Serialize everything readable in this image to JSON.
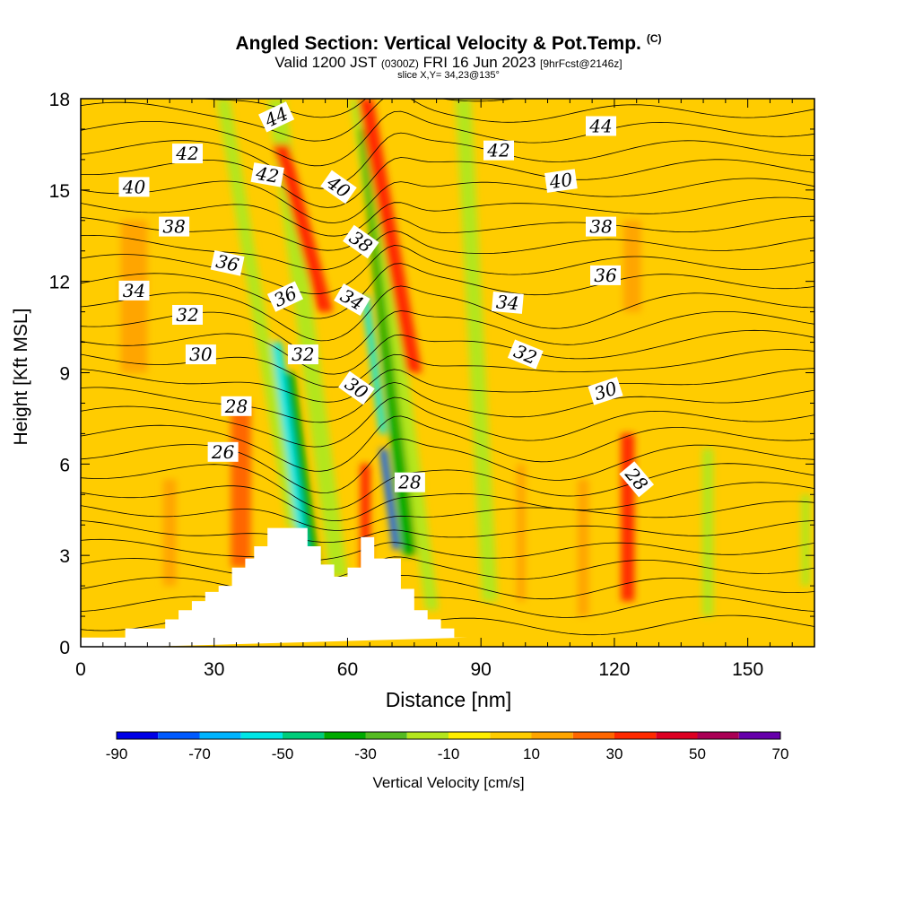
{
  "chart_data": {
    "type": "heatmap",
    "title": "Angled Section: Vertical Velocity & Pot.Temp.",
    "title_mark": "(C)",
    "subtitle_parts": [
      "Valid 1200 JST",
      "(0300Z)",
      "FRI 16 Jun 2023",
      "[9hrFcst@2146z]"
    ],
    "slice_label": "slice X,Y= 34,23@135°",
    "xlabel": "Distance [nm]",
    "ylabel": "Height [Kft MSL]",
    "xlim": [
      0,
      165
    ],
    "ylim": [
      0,
      18
    ],
    "x_ticks": [
      0,
      30,
      60,
      90,
      120,
      150
    ],
    "y_ticks": [
      0,
      3,
      6,
      9,
      12,
      15,
      18
    ],
    "colorbar": {
      "label": "Vertical Velocity [cm/s]",
      "tick_labels": [
        -90,
        -70,
        -50,
        -30,
        -10,
        10,
        30,
        50,
        70
      ],
      "bins": [
        {
          "from": -90,
          "to": -80,
          "color": "#0000e6"
        },
        {
          "from": -80,
          "to": -70,
          "color": "#005aff"
        },
        {
          "from": -70,
          "to": -60,
          "color": "#00b4ff"
        },
        {
          "from": -60,
          "to": -50,
          "color": "#00e6e6"
        },
        {
          "from": -50,
          "to": -40,
          "color": "#00cc7a"
        },
        {
          "from": -40,
          "to": -30,
          "color": "#00aa00"
        },
        {
          "from": -30,
          "to": -20,
          "color": "#55bb22"
        },
        {
          "from": -20,
          "to": -10,
          "color": "#b4e61e"
        },
        {
          "from": -10,
          "to": 0,
          "color": "#ffee00"
        },
        {
          "from": 0,
          "to": 10,
          "color": "#ffcc00"
        },
        {
          "from": 10,
          "to": 20,
          "color": "#ffa500"
        },
        {
          "from": 20,
          "to": 30,
          "color": "#ff6600"
        },
        {
          "from": 30,
          "to": 40,
          "color": "#ff2a00"
        },
        {
          "from": 40,
          "to": 50,
          "color": "#dd0022"
        },
        {
          "from": 50,
          "to": 60,
          "color": "#aa0055"
        },
        {
          "from": 60,
          "to": 70,
          "color": "#6600aa"
        }
      ]
    },
    "terrain": {
      "x": [
        0,
        10,
        10,
        19,
        19,
        22,
        22,
        25,
        25,
        28,
        28,
        31,
        31,
        34,
        34,
        37,
        37,
        39,
        39,
        42,
        42,
        51,
        51,
        54,
        54,
        57,
        57,
        60,
        60,
        63,
        63,
        66,
        66,
        72,
        72,
        75,
        75,
        78,
        78,
        81,
        81,
        84,
        84,
        87,
        87,
        165
      ],
      "y": [
        0.3,
        0.3,
        0.6,
        0.6,
        0.9,
        0.9,
        1.2,
        1.2,
        1.5,
        1.5,
        1.8,
        1.8,
        2.0,
        2.0,
        2.6,
        2.6,
        2.9,
        2.9,
        3.3,
        3.3,
        3.9,
        3.9,
        3.3,
        3.3,
        2.7,
        2.7,
        2.3,
        2.3,
        2.6,
        2.6,
        3.6,
        3.6,
        2.9,
        2.9,
        1.9,
        1.9,
        1.2,
        1.2,
        0.9,
        0.9,
        0.6,
        0.6,
        0.3,
        0.3,
        0.3
      ]
    },
    "vertical_velocity_features": [
      {
        "x_bottom": 48,
        "x_top": 32,
        "y_from": 3.9,
        "y_to": 18,
        "width": 3,
        "value": -15
      },
      {
        "x_bottom": 51,
        "x_top": 44,
        "y_from": 2.4,
        "y_to": 10,
        "width": 2.2,
        "value": -55
      },
      {
        "x_bottom": 53,
        "x_top": 47,
        "y_from": 2.2,
        "y_to": 9,
        "width": 2.2,
        "value": -35
      },
      {
        "x_bottom": 58,
        "x_top": 44,
        "y_from": 2.3,
        "y_to": 18,
        "width": 4,
        "value": -20
      },
      {
        "x_bottom": 55,
        "x_top": 45,
        "y_from": 11,
        "y_to": 16.5,
        "width": 3.5,
        "value": 35
      },
      {
        "x_bottom": 64,
        "x_top": 64,
        "y_from": 2.5,
        "y_to": 6,
        "width": 2.2,
        "value": 35
      },
      {
        "x_bottom": 72,
        "x_top": 62,
        "y_from": 8,
        "y_to": 18,
        "width": 3,
        "value": -20
      },
      {
        "x_bottom": 74,
        "x_top": 64,
        "y_from": 3,
        "y_to": 17,
        "width": 3,
        "value": -40
      },
      {
        "x_bottom": 71,
        "x_top": 68,
        "y_from": 3.2,
        "y_to": 6.5,
        "width": 1.5,
        "value": -80
      },
      {
        "x_bottom": 68,
        "x_top": 64,
        "y_from": 7,
        "y_to": 11.5,
        "width": 1.5,
        "value": -55
      },
      {
        "x_bottom": 79,
        "x_top": 64,
        "y_from": 1.2,
        "y_to": 18,
        "width": 3,
        "value": -20
      },
      {
        "x_bottom": 75,
        "x_top": 64,
        "y_from": 9,
        "y_to": 18,
        "width": 3.5,
        "value": 35
      },
      {
        "x_bottom": 92,
        "x_top": 86,
        "y_from": 1.5,
        "y_to": 18,
        "width": 3.5,
        "value": -12
      },
      {
        "x_bottom": 123,
        "x_top": 123,
        "y_from": 1.5,
        "y_to": 7,
        "width": 3,
        "value": 35
      },
      {
        "x_bottom": 36,
        "x_top": 36,
        "y_from": 2.6,
        "y_to": 8,
        "width": 4.5,
        "value": 25
      },
      {
        "x_bottom": 20,
        "x_top": 20,
        "y_from": 2,
        "y_to": 5.5,
        "width": 3,
        "value": 15
      },
      {
        "x_bottom": 12,
        "x_top": 12,
        "y_from": 9,
        "y_to": 14,
        "width": 6,
        "value": 12
      },
      {
        "x_bottom": 124,
        "x_top": 124,
        "y_from": 11,
        "y_to": 14,
        "width": 4,
        "value": 12
      },
      {
        "x_bottom": 141,
        "x_top": 141,
        "y_from": 1,
        "y_to": 6.5,
        "width": 2.5,
        "value": -12
      },
      {
        "x_bottom": 163,
        "x_top": 163,
        "y_from": 2,
        "y_to": 5,
        "width": 2,
        "value": -15
      },
      {
        "x_bottom": 99,
        "x_top": 99,
        "y_from": 1.5,
        "y_to": 6,
        "width": 2,
        "value": 12
      },
      {
        "x_bottom": 113,
        "x_top": 113,
        "y_from": 1,
        "y_to": 5.5,
        "width": 2.5,
        "value": 12
      }
    ],
    "isentrope_labels": [
      {
        "value": 44,
        "x": 44,
        "y": 17.4,
        "angle": -25
      },
      {
        "value": 44,
        "x": 117,
        "y": 17.1,
        "angle": 0
      },
      {
        "value": 42,
        "x": 24,
        "y": 16.2,
        "angle": 0
      },
      {
        "value": 42,
        "x": 42,
        "y": 15.5,
        "angle": 10
      },
      {
        "value": 42,
        "x": 94,
        "y": 16.3,
        "angle": 0
      },
      {
        "value": 40,
        "x": 12,
        "y": 15.1,
        "angle": 0
      },
      {
        "value": 40,
        "x": 58,
        "y": 15.1,
        "angle": 35
      },
      {
        "value": 40,
        "x": 108,
        "y": 15.3,
        "angle": -8
      },
      {
        "value": 38,
        "x": 21,
        "y": 13.8,
        "angle": 0
      },
      {
        "value": 38,
        "x": 63,
        "y": 13.3,
        "angle": 35
      },
      {
        "value": 38,
        "x": 117,
        "y": 13.8,
        "angle": 0
      },
      {
        "value": 36,
        "x": 33,
        "y": 12.6,
        "angle": 12
      },
      {
        "value": 36,
        "x": 46,
        "y": 11.5,
        "angle": -25
      },
      {
        "value": 36,
        "x": 118,
        "y": 12.2,
        "angle": 0
      },
      {
        "value": 34,
        "x": 12,
        "y": 11.7,
        "angle": 0
      },
      {
        "value": 34,
        "x": 61,
        "y": 11.4,
        "angle": 30
      },
      {
        "value": 34,
        "x": 96,
        "y": 11.3,
        "angle": 5
      },
      {
        "value": 32,
        "x": 24,
        "y": 10.9,
        "angle": 0
      },
      {
        "value": 32,
        "x": 50,
        "y": 9.6,
        "angle": 0
      },
      {
        "value": 32,
        "x": 100,
        "y": 9.6,
        "angle": 22
      },
      {
        "value": 30,
        "x": 27,
        "y": 9.6,
        "angle": 0
      },
      {
        "value": 30,
        "x": 62,
        "y": 8.5,
        "angle": 35
      },
      {
        "value": 30,
        "x": 118,
        "y": 8.4,
        "angle": -18
      },
      {
        "value": 28,
        "x": 35,
        "y": 7.9,
        "angle": 0
      },
      {
        "value": 28,
        "x": 74,
        "y": 5.4,
        "angle": 0
      },
      {
        "value": 28,
        "x": 125,
        "y": 5.5,
        "angle": 50
      },
      {
        "value": 26,
        "x": 32,
        "y": 6.4,
        "angle": 0
      }
    ]
  }
}
